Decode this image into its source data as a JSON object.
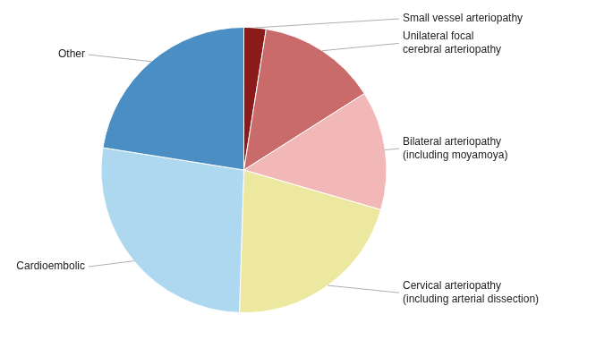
{
  "chart_data": {
    "type": "pie",
    "categories": [
      "Small vessel arteriopathy",
      "Unilateral focal\ncerebral arteriopathy",
      "Bilateral arteriopathy\n(including moyamoya)",
      "Cervical arteriopathy\n(including arterial dissection)",
      "Cardioembolic",
      "Other"
    ],
    "values": [
      2.5,
      13.5,
      13.5,
      21.0,
      27.0,
      22.5
    ],
    "colors": [
      "#8B1A1A",
      "#C96B6B",
      "#F2B8B8",
      "#EDE8A0",
      "#ADD8F0",
      "#4A8EC4"
    ]
  }
}
